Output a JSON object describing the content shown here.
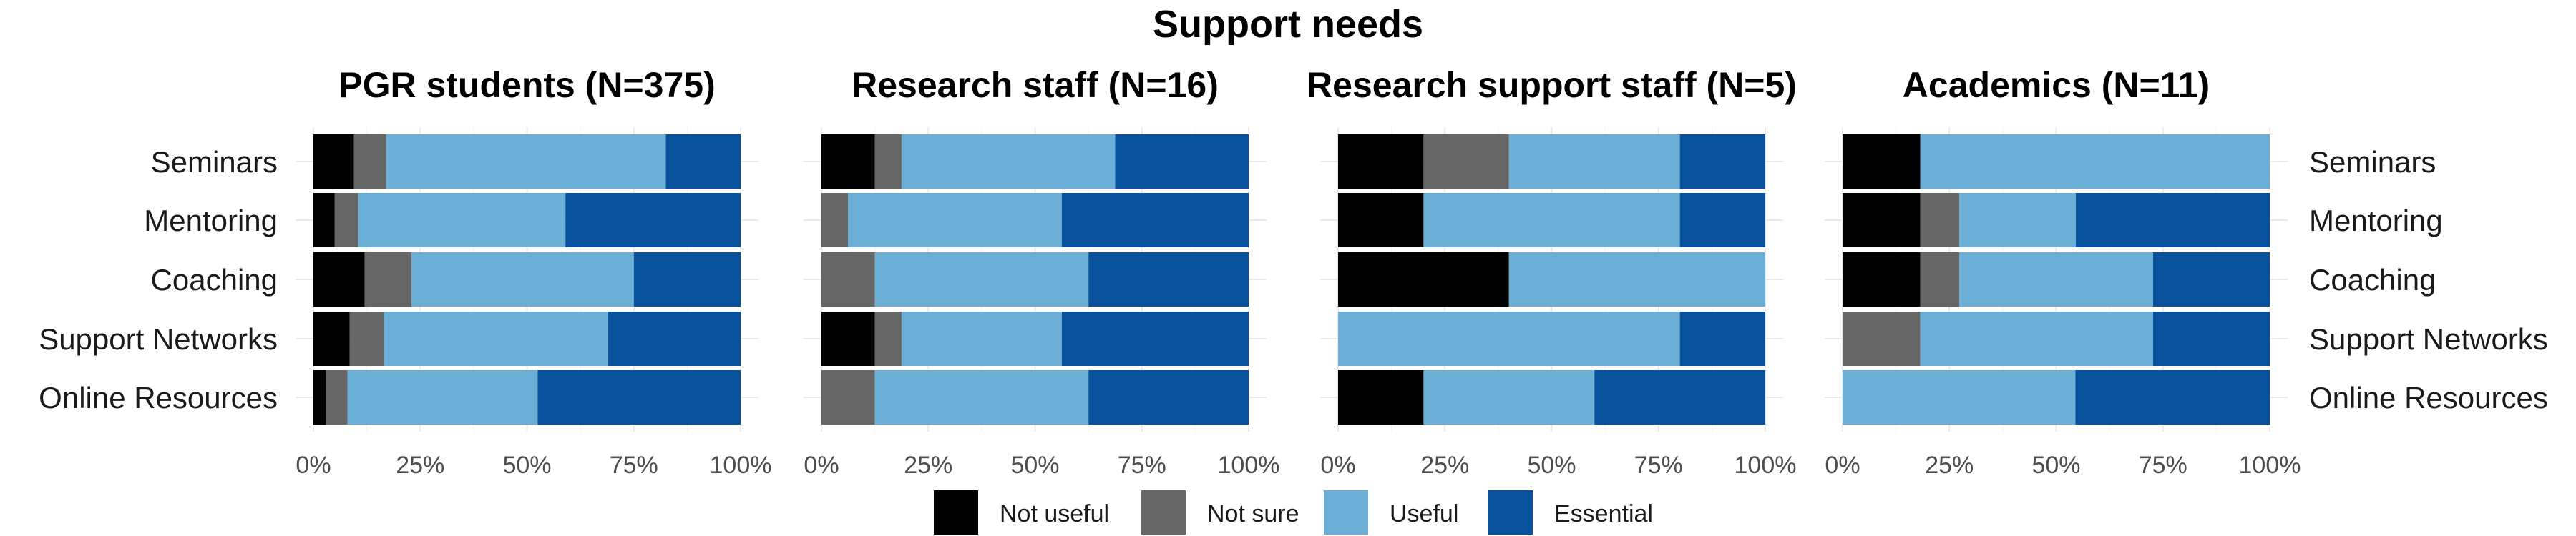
{
  "chart_data": {
    "type": "bar",
    "orientation": "horizontal",
    "stacked": true,
    "title": "Support needs",
    "categories": [
      "Seminars",
      "Mentoring",
      "Coaching",
      "Support Networks",
      "Online Resources"
    ],
    "x_ticks": [
      "0%",
      "25%",
      "50%",
      "75%",
      "100%"
    ],
    "xlim": [
      0,
      100
    ],
    "legend_position": "bottom",
    "series_styles": [
      {
        "name": "Not useful",
        "color": "#000000"
      },
      {
        "name": "Not sure",
        "color": "#666666"
      },
      {
        "name": "Useful",
        "color": "#6baed6"
      },
      {
        "name": "Essential",
        "color": "#08519c"
      }
    ],
    "panels": [
      {
        "title": "PGR students (N=375)",
        "values": [
          [
            9.5,
            7.5,
            65.5,
            17.5
          ],
          [
            5,
            5.5,
            48.5,
            41
          ],
          [
            12,
            11,
            52,
            25
          ],
          [
            8.5,
            8,
            52.5,
            31
          ],
          [
            3,
            5,
            44.5,
            47.5
          ]
        ]
      },
      {
        "title": "Research staff (N=16)",
        "values": [
          [
            12.5,
            6.25,
            50,
            31.25
          ],
          [
            0,
            6.25,
            50,
            43.75
          ],
          [
            0,
            12.5,
            50,
            37.5
          ],
          [
            12.5,
            6.25,
            37.5,
            43.75
          ],
          [
            0,
            12.5,
            50,
            37.5
          ]
        ]
      },
      {
        "title": "Research support staff (N=5)",
        "values": [
          [
            20,
            20,
            40,
            20
          ],
          [
            20,
            0,
            60,
            20
          ],
          [
            40,
            0,
            60,
            0
          ],
          [
            0,
            0,
            80,
            20
          ],
          [
            20,
            0,
            40,
            40
          ]
        ]
      },
      {
        "title": "Academics (N=11)",
        "values": [
          [
            18.2,
            0,
            81.8,
            0
          ],
          [
            18.2,
            9.1,
            27.3,
            45.4
          ],
          [
            18.2,
            9.1,
            45.4,
            27.3
          ],
          [
            0,
            18.2,
            54.5,
            27.3
          ],
          [
            0,
            0,
            54.5,
            45.5
          ]
        ]
      }
    ]
  }
}
